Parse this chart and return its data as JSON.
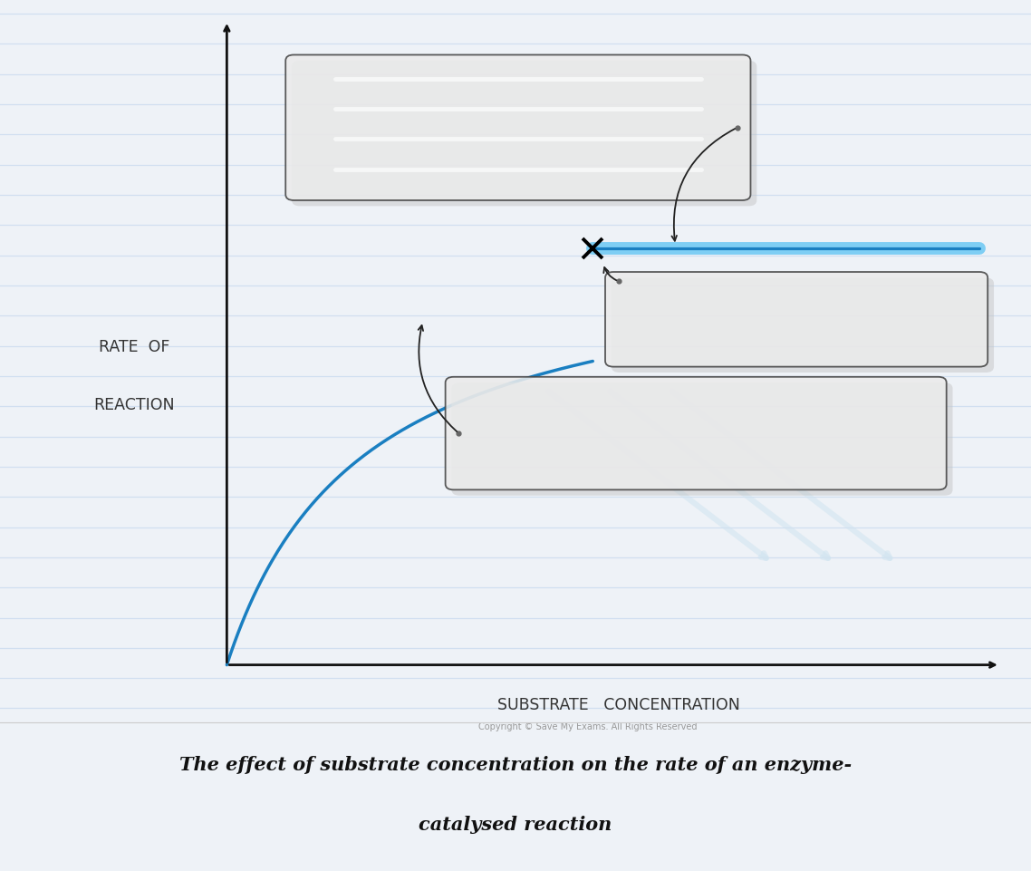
{
  "bg_color": "#eef2f7",
  "chart_bg": "#ffffff",
  "title_line1": "The effect of substrate concentration on the rate of an enzyme-",
  "title_line2": "catalysed reaction",
  "xlabel": "SUBSTRATE   CONCENTRATION",
  "ylabel_line1": "RATE  OF",
  "ylabel_line2": "REACTION",
  "copyright": "Copyright © Save My Exams. All Rights Reserved",
  "curve_color": "#1a7fc1",
  "plateau_color_light": "#7ecef4",
  "horizontal_line_color": "#c5d8ee",
  "box_fill": "#ebebeb",
  "box_edge": "#444444",
  "box_shadow": "#bbbbbb",
  "arrow_color": "#222222",
  "watermark_color": "#d0e4f0",
  "axis_color": "#111111",
  "title_color": "#111111",
  "xlabel_color": "#333333",
  "ylabel_color": "#333333",
  "copyright_color": "#999999",
  "n_hlines": 24,
  "fig_width": 11.38,
  "fig_height": 9.62
}
